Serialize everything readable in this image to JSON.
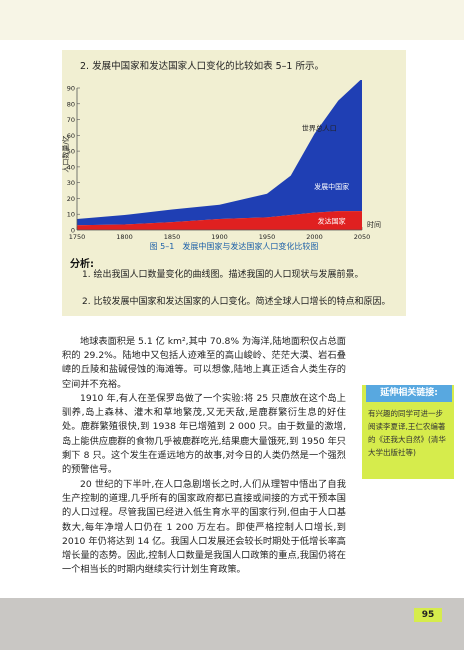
{
  "intro": "2. 发展中国家和发达国家人口变化的比较如表 5–1 所示。",
  "chart_data": {
    "type": "area",
    "ylabel": "人口数量/亿",
    "xlabel": "时间",
    "x": [
      1750,
      1800,
      1850,
      1900,
      1950,
      1975,
      2000,
      2025,
      2050
    ],
    "series": [
      {
        "name": "发达国家",
        "values": [
          3,
          3.5,
          5,
          7,
          8,
          9.5,
          11,
          12,
          12
        ],
        "color": "#e02020"
      },
      {
        "name": "发展中国家",
        "values": [
          4,
          6,
          8,
          9,
          15,
          25,
          50,
          70,
          84
        ],
        "color": "#1f3fb4"
      }
    ],
    "total_label": "世界总人口",
    "xticks": [
      "1750",
      "1800",
      "1850",
      "1900",
      "1950",
      "2000",
      "2050"
    ],
    "yticks": [
      "0",
      "10",
      "20",
      "30",
      "40",
      "50",
      "60",
      "70",
      "80",
      "90"
    ],
    "ylim": [
      0,
      90
    ],
    "xlim": [
      1750,
      2050
    ]
  },
  "caption": "图 5–1　发展中国家与发达国家人口变化比较图",
  "analysis": {
    "title": "分析:",
    "q1": "1. 绘出我国人口数量变化的曲线图。描述我国的人口现状与发展前景。",
    "q2": "2. 比较发展中国家和发达国家的人口变化。简述全球人口增长的特点和原因。"
  },
  "paragraphs": [
    "地球表面积是 5.1 亿 km²,其中 70.8% 为海洋,陆地面积仅占总面积的 29.2%。陆地中又包括人迹难至的高山峻岭、茫茫大漠、岩石叠嶂的丘陵和盐碱侵蚀的海滩等。可以想像,陆地上真正适合人类生存的空间并不充裕。",
    "1910 年,有人在圣保罗岛做了一个实验:将 25 只鹿放在这个岛上驯养,岛上森林、灌木和草地繁茂,又无天敌,是鹿群繁衍生息的好住处。鹿群繁殖很快,到 1938 年已增殖到 2 000 只。由于数量的激增,岛上能供应鹿群的食物几乎被鹿群吃光,结果鹿大量饿死,到 1950 年只剩下 8 只。这个发生在遥远地方的故事,对今日的人类仍然是一个强烈的预警信号。",
    "20 世纪的下半叶,在人口急剧增长之时,人们从理智中悟出了自我生产控制的道理,几乎所有的国家政府都已直接或间接的方式干预本国的人口过程。尽管我国已经进入低生育水平的国家行列,但由于人口基数大,每年净增人口仍在 1 200 万左右。即使严格控制人口增长,到 2010 年仍将达到 14 亿。我国人口发展还会较长时期处于低增长率高增长量的态势。因此,控制人口数量是我国人口政策的重点,我国仍将在一个相当长的时期内继续实行计划生育政策。"
  ],
  "sidebar": {
    "title": "延伸相关链接:",
    "text": "有兴趣的同学可进一步阅读李夏译,王仁农编著的《还我大自然》(清华大学出版社等)"
  },
  "page_number": "95"
}
